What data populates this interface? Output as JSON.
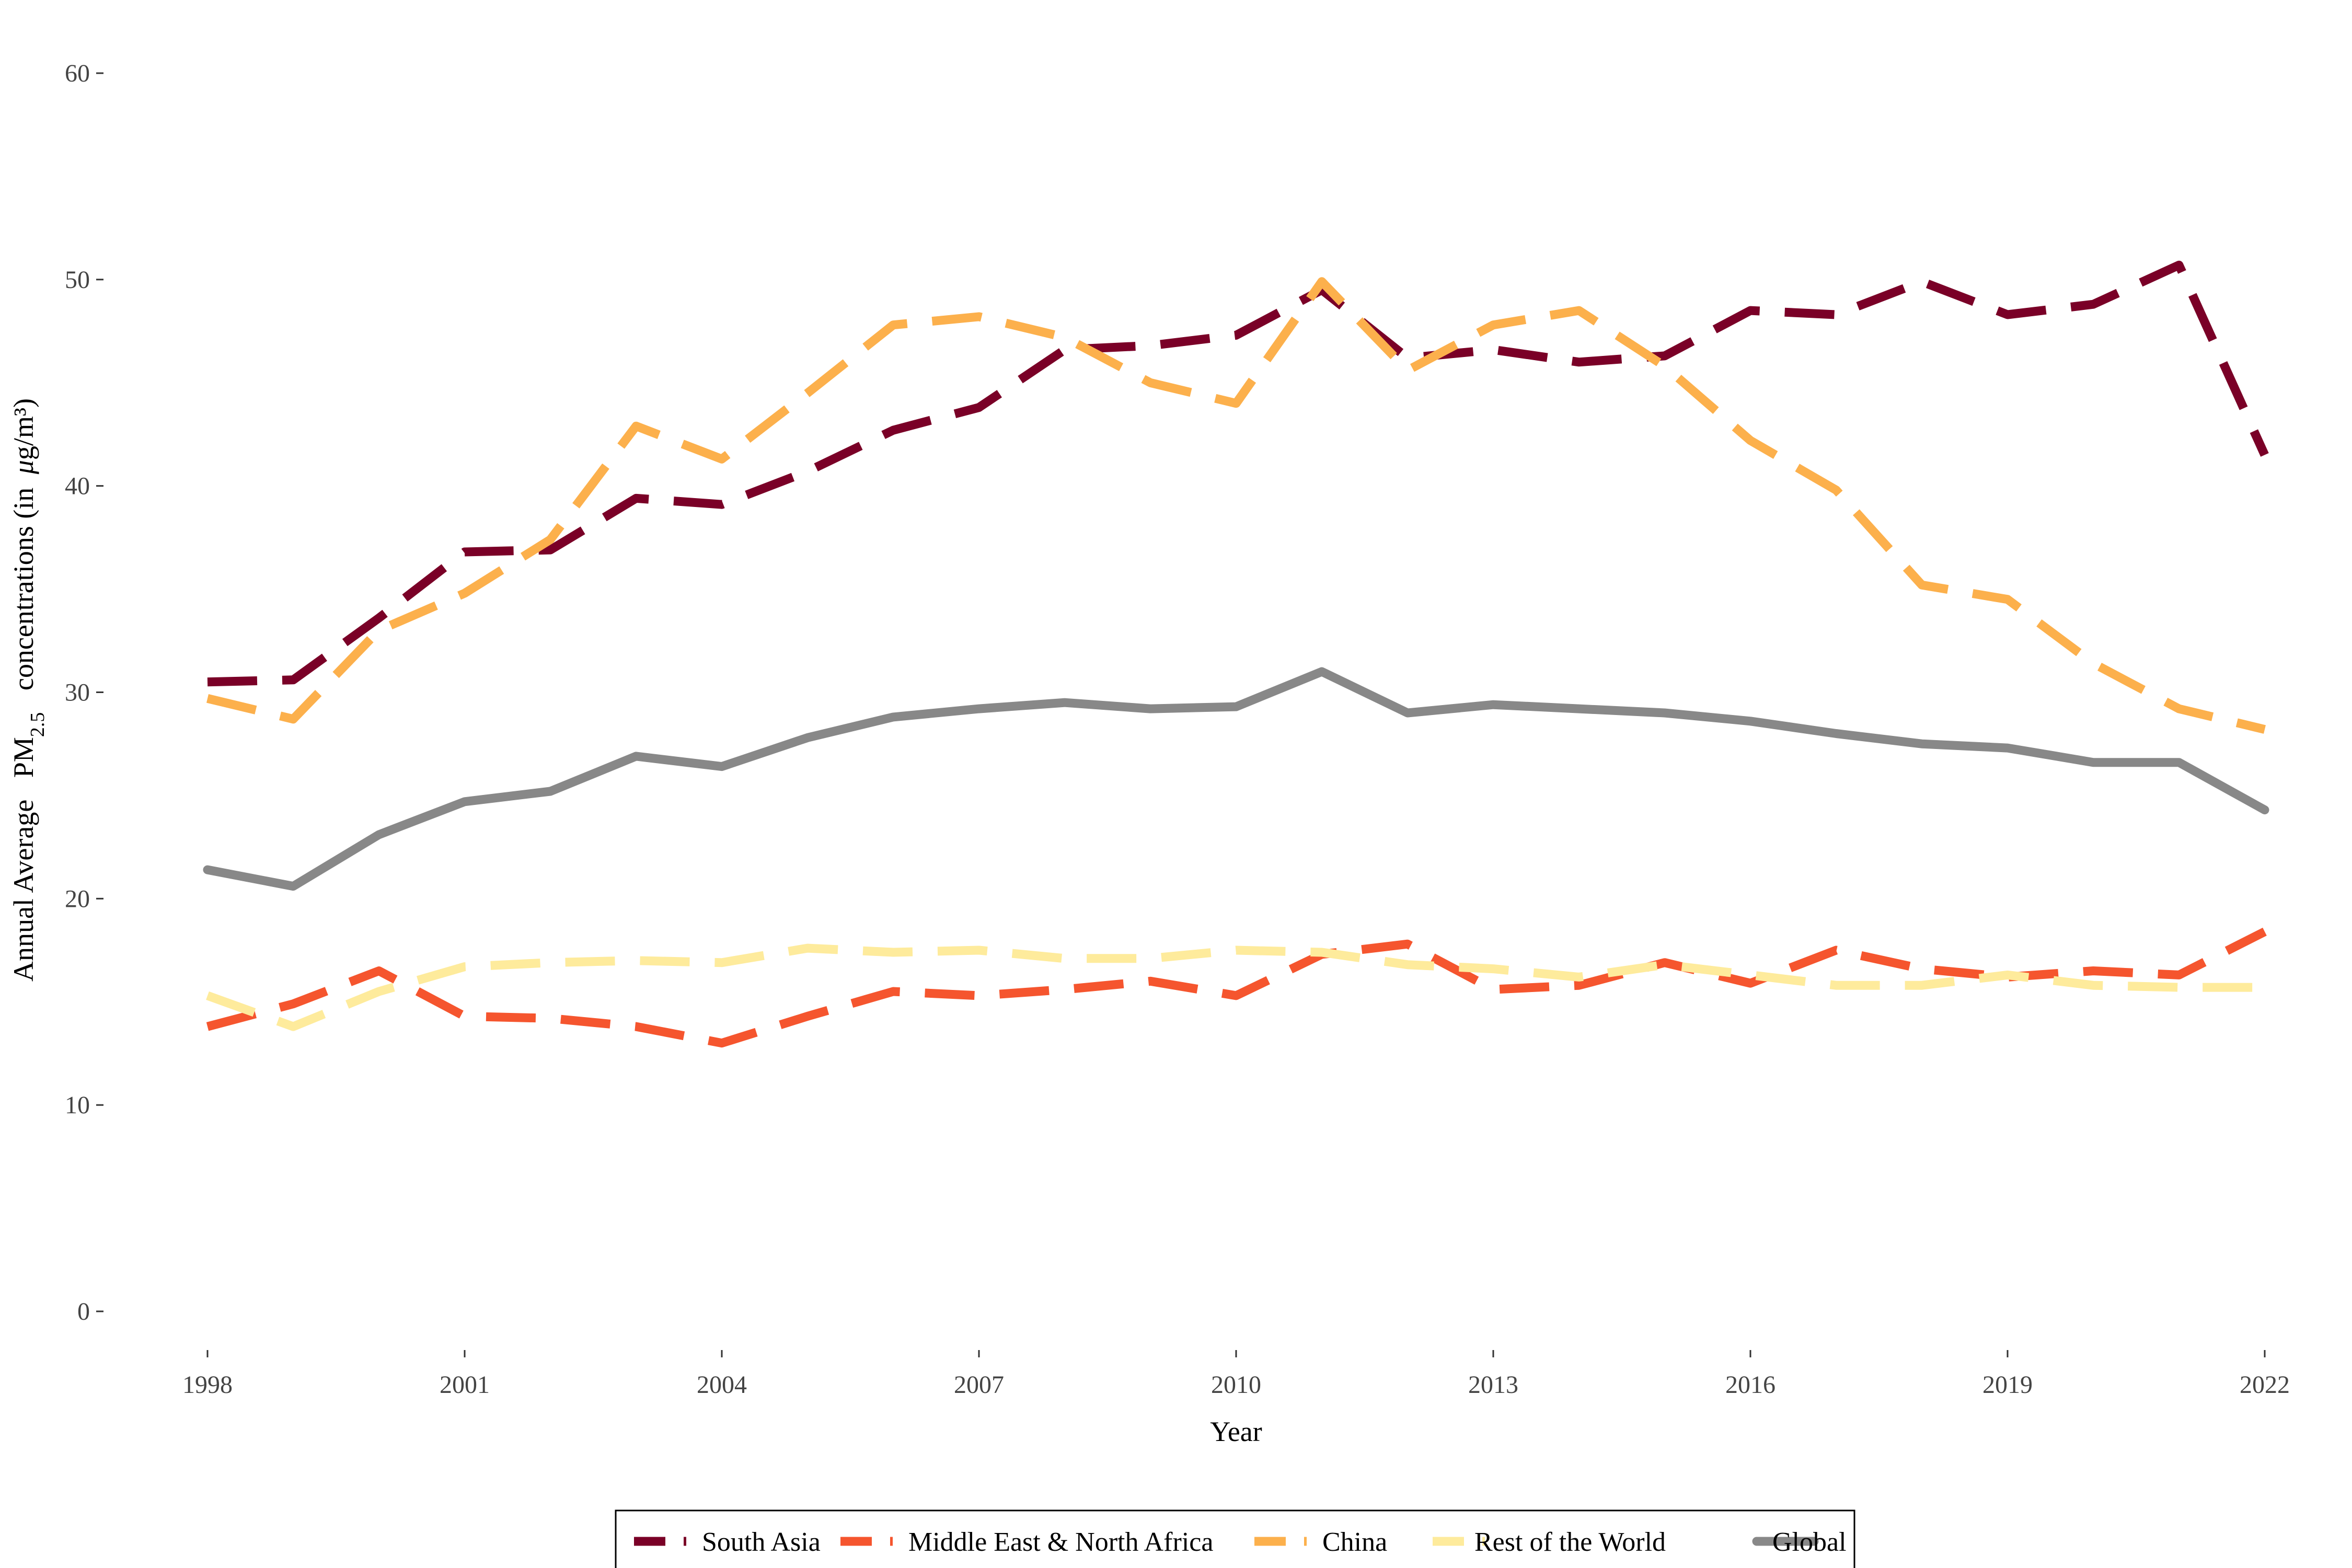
{
  "chart_data": {
    "type": "line",
    "xlabel": "Year",
    "ylabel": {
      "prefix": "Annual Average",
      "pm": "PM",
      "pm_sub": "2.5",
      "suffix": "concentrations (in",
      "mu": "μ",
      "unit": "g/m³)"
    },
    "xlim": [
      1998,
      2022
    ],
    "ylim": [
      0,
      60
    ],
    "xticks": [
      1998,
      2001,
      2004,
      2007,
      2010,
      2013,
      2016,
      2019,
      2022
    ],
    "yticks": [
      0,
      10,
      20,
      30,
      40,
      50,
      60
    ],
    "grid": false,
    "legend_position": "bottom",
    "x": [
      1998,
      1999,
      2000,
      2001,
      2002,
      2003,
      2004,
      2005,
      2006,
      2007,
      2008,
      2009,
      2010,
      2011,
      2012,
      2013,
      2014,
      2015,
      2016,
      2017,
      2018,
      2019,
      2020,
      2021,
      2022
    ],
    "series": [
      {
        "name": "South Asia",
        "color": "#7a0027",
        "dash": "dashed",
        "values": [
          30.5,
          30.6,
          33.6,
          36.8,
          36.9,
          39.4,
          39.1,
          40.7,
          42.7,
          43.8,
          46.6,
          46.8,
          47.3,
          49.5,
          46.2,
          46.6,
          46.0,
          46.3,
          48.5,
          48.3,
          49.9,
          48.3,
          48.8,
          50.7,
          41.5
        ]
      },
      {
        "name": "Middle East & North Africa",
        "color": "#f5552e",
        "dash": "dashed",
        "values": [
          13.8,
          14.9,
          16.5,
          14.3,
          14.2,
          13.8,
          13.0,
          14.3,
          15.5,
          15.3,
          15.6,
          16.0,
          15.3,
          17.3,
          17.8,
          15.6,
          15.8,
          16.9,
          15.9,
          17.5,
          16.6,
          16.2,
          16.5,
          16.3,
          18.4
        ]
      },
      {
        "name": "China",
        "color": "#fcb04c",
        "dash": "dashed",
        "values": [
          29.7,
          28.7,
          33.0,
          34.8,
          37.4,
          42.9,
          41.3,
          44.5,
          47.8,
          48.2,
          47.2,
          45.0,
          44.0,
          49.9,
          45.6,
          47.8,
          48.5,
          45.8,
          42.2,
          39.8,
          35.2,
          34.5,
          31.4,
          29.2,
          28.2
        ]
      },
      {
        "name": "Rest of the World",
        "color": "#feeb9c",
        "dash": "dashed",
        "values": [
          15.3,
          13.8,
          15.5,
          16.7,
          16.9,
          17.0,
          16.9,
          17.6,
          17.4,
          17.5,
          17.1,
          17.1,
          17.5,
          17.4,
          16.8,
          16.6,
          16.2,
          16.8,
          16.3,
          15.8,
          15.8,
          16.3,
          15.8,
          15.7,
          15.7
        ]
      },
      {
        "name": "Global",
        "color": "#888888",
        "dash": "solid",
        "values": [
          21.4,
          20.6,
          23.1,
          24.7,
          25.2,
          26.9,
          26.4,
          27.8,
          28.8,
          29.2,
          29.5,
          29.2,
          29.3,
          31.0,
          29.0,
          29.4,
          29.2,
          29.0,
          28.6,
          28.0,
          27.5,
          27.3,
          26.6,
          26.6,
          24.3
        ]
      }
    ]
  }
}
